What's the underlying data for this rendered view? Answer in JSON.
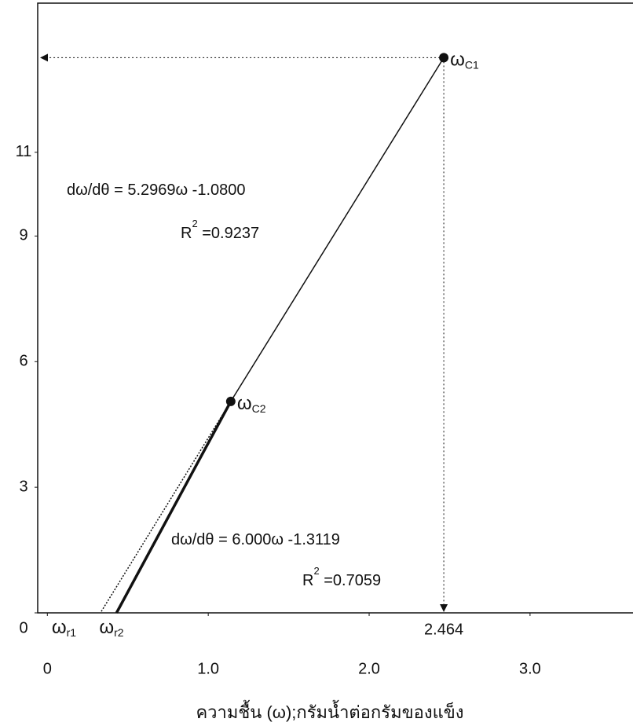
{
  "chart_data": {
    "type": "line",
    "xlabel": "ความชื้น (ω);กรัมน้ำต่อกรัมของแข็ง",
    "xlim": [
      -0.06,
      3.64
    ],
    "ylim": [
      0,
      14.6
    ],
    "xticks": [
      0,
      {
        "value": 1,
        "label": "1.0"
      },
      {
        "value": 2,
        "label": "2.0"
      },
      {
        "value": 3,
        "label": "3.0"
      }
    ],
    "yticks": [
      0,
      3,
      6,
      9,
      11
    ],
    "points": [
      {
        "name": "ω",
        "sub": "C1",
        "x": 2.464,
        "y": 13.26
      },
      {
        "name": "ω",
        "sub": "C2",
        "x": 1.14,
        "y": 5.05
      },
      {
        "name": "ω",
        "sub": "r1",
        "x": 0.33,
        "y": 0
      },
      {
        "name": "ω",
        "sub": "r2",
        "x": 0.43,
        "y": 0
      }
    ],
    "annotations": [
      {
        "text": "dω/dθ = 5.2969ω -1.0800"
      },
      {
        "text": "R",
        "sup": "2",
        "rest": " =0.9237"
      },
      {
        "text": "dω/dθ = 6.000ω -1.3119"
      },
      {
        "text": "R",
        "sup": "2",
        "rest": " =0.7059"
      }
    ]
  }
}
